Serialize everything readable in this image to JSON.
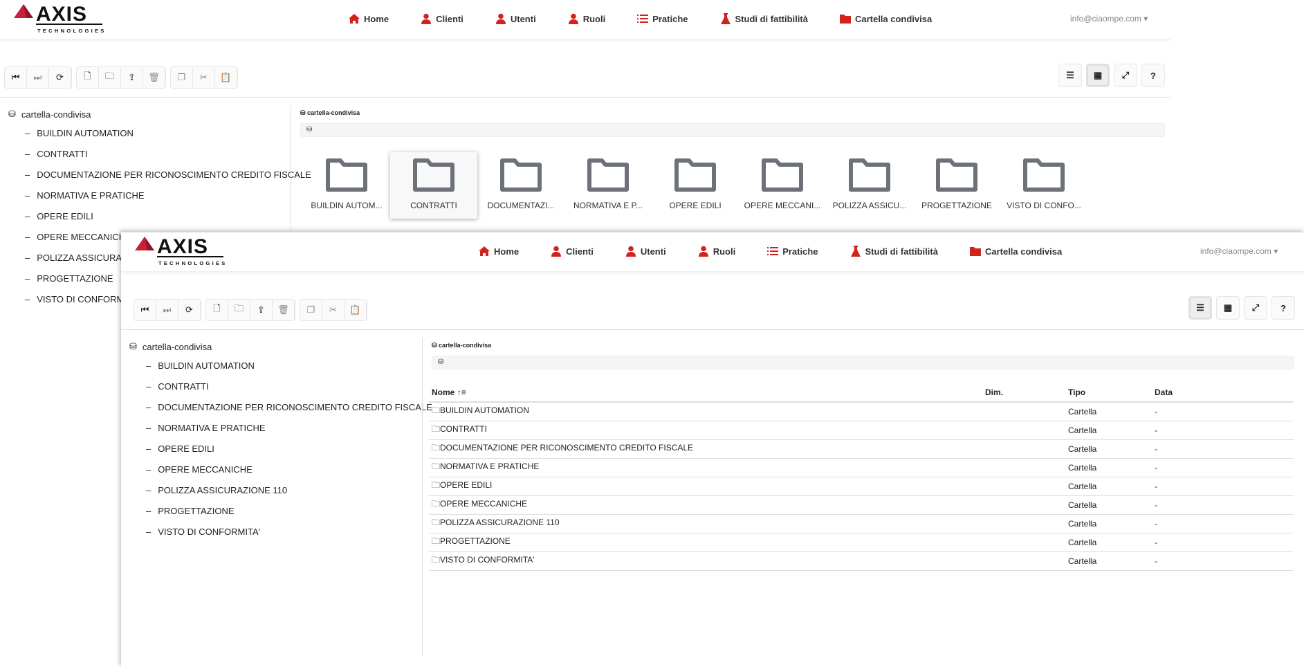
{
  "brand": {
    "name": "AXIS",
    "sub": "TECHNOLOGIES",
    "accent": "#d0231c"
  },
  "nav": [
    {
      "label": "Home",
      "icon": "home-icon"
    },
    {
      "label": "Clienti",
      "icon": "user-icon"
    },
    {
      "label": "Utenti",
      "icon": "user-icon"
    },
    {
      "label": "Ruoli",
      "icon": "user-icon"
    },
    {
      "label": "Pratiche",
      "icon": "list-icon"
    },
    {
      "label": "Studi di fattibilità",
      "icon": "flask-icon"
    },
    {
      "label": "Cartella condivisa",
      "icon": "folder-icon"
    }
  ],
  "user": "info@ciaompe.com",
  "toolbar": {
    "left": [
      [
        "first-icon",
        "next-icon",
        "refresh-icon"
      ],
      [
        "new-file-icon",
        "new-folder-icon",
        "upload-icon",
        "delete-icon"
      ],
      [
        "copy-icon",
        "cut-icon",
        "paste-icon"
      ]
    ],
    "right": [
      "list-view-icon",
      "grid-view-icon",
      "fullscreen-icon",
      "help-icon"
    ],
    "help": "?"
  },
  "tree": {
    "root": "cartella-condivisa",
    "items": [
      "BUILDIN AUTOMATION",
      "CONTRATTI",
      "DOCUMENTAZIONE PER RICONOSCIMENTO CREDITO FISCALE",
      "NORMATIVA E PRATICHE",
      "OPERE EDILI",
      "OPERE MECCANICHE",
      "POLIZZA ASSICURAZIONE 110",
      "PROGETTAZIONE",
      "VISTO DI CONFORMITA'"
    ]
  },
  "breadcrumb": "cartella-condivisa",
  "grid_labels": [
    "BUILDIN AUTOM...",
    "CONTRATTI",
    "DOCUMENTAZI...",
    "NORMATIVA E P...",
    "OPERE EDILI",
    "OPERE MECCANI...",
    "POLIZZA ASSICU...",
    "PROGETTAZIONE",
    "VISTO DI CONFO..."
  ],
  "grid_selected": 1,
  "table": {
    "headers": [
      "Nome",
      "Dim.",
      "Tipo",
      "Data"
    ],
    "rows": [
      [
        "BUILDIN AUTOMATION",
        "",
        "Cartella",
        "-"
      ],
      [
        "CONTRATTI",
        "",
        "Cartella",
        "-"
      ],
      [
        "DOCUMENTAZIONE PER RICONOSCIMENTO CREDITO FISCALE",
        "",
        "Cartella",
        "-"
      ],
      [
        "NORMATIVA E PRATICHE",
        "",
        "Cartella",
        "-"
      ],
      [
        "OPERE EDILI",
        "",
        "Cartella",
        "-"
      ],
      [
        "OPERE MECCANICHE",
        "",
        "Cartella",
        "-"
      ],
      [
        "POLIZZA ASSICURAZIONE 110",
        "",
        "Cartella",
        "-"
      ],
      [
        "PROGETTAZIONE",
        "",
        "Cartella",
        "-"
      ],
      [
        "VISTO DI CONFORMITA'",
        "",
        "Cartella",
        "-"
      ]
    ]
  }
}
